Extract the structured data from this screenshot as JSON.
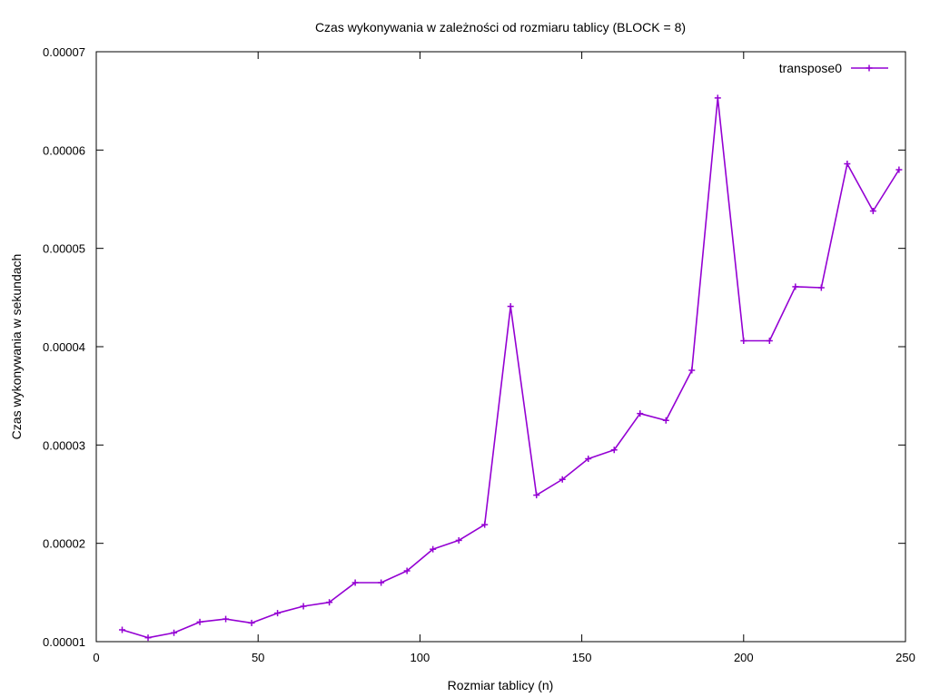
{
  "chart_data": {
    "type": "line",
    "title": "Czas wykonywania w zależności od rozmiaru tablicy (BLOCK = 8)",
    "xlabel": "Rozmiar tablicy (n)",
    "ylabel": "Czas wykonywania w sekundach",
    "xlim": [
      0,
      250
    ],
    "ylim": [
      1e-05,
      7e-05
    ],
    "x_ticks": [
      0,
      50,
      100,
      150,
      200,
      250
    ],
    "x_tick_labels": [
      "0",
      "50",
      "100",
      "150",
      "200",
      "250"
    ],
    "y_ticks": [
      1e-05,
      2e-05,
      3e-05,
      4e-05,
      5e-05,
      6e-05,
      7e-05
    ],
    "y_tick_labels": [
      "0.00001",
      "0.00002",
      "0.00003",
      "0.00004",
      "0.00005",
      "0.00006",
      "0.00007"
    ],
    "grid": false,
    "legend_position": "top-right",
    "series": [
      {
        "name": "transpose0",
        "color": "#9400d3",
        "marker": "plus",
        "x": [
          8,
          16,
          24,
          32,
          40,
          48,
          56,
          64,
          72,
          80,
          88,
          96,
          104,
          112,
          120,
          128,
          136,
          144,
          152,
          160,
          168,
          176,
          184,
          192,
          200,
          208,
          216,
          224,
          232,
          240,
          248
        ],
        "y": [
          1.12e-05,
          1.04e-05,
          1.09e-05,
          1.2e-05,
          1.23e-05,
          1.19e-05,
          1.29e-05,
          1.36e-05,
          1.4e-05,
          1.6e-05,
          1.6e-05,
          1.72e-05,
          1.94e-05,
          2.03e-05,
          2.19e-05,
          4.41e-05,
          2.49e-05,
          2.65e-05,
          2.86e-05,
          2.95e-05,
          3.32e-05,
          3.25e-05,
          3.76e-05,
          6.53e-05,
          4.06e-05,
          4.06e-05,
          4.61e-05,
          4.6e-05,
          5.86e-05,
          5.38e-05,
          5.8e-05
        ]
      }
    ]
  }
}
